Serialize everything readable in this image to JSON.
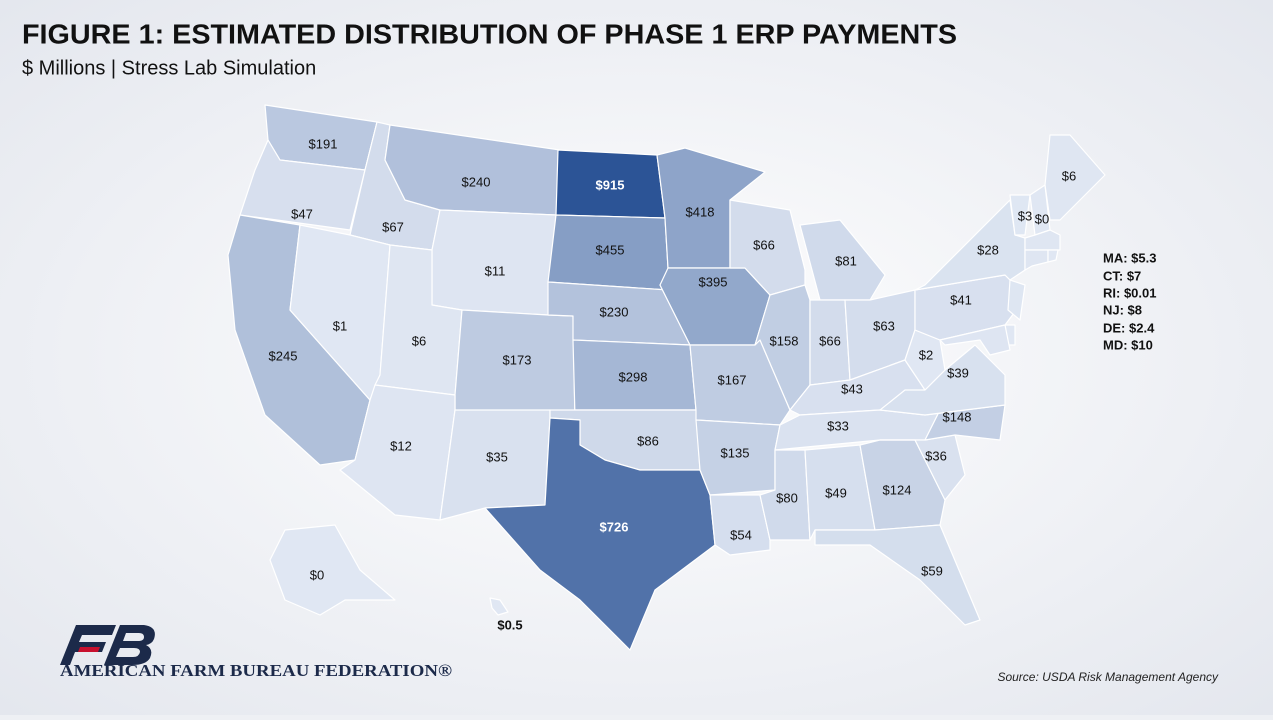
{
  "chart_data": {
    "type": "choropleth",
    "title": "FIGURE 1: ESTIMATED DISTRIBUTION OF PHASE 1 ERP PAYMENTS",
    "subtitle": "$ Millions | Stress Lab Simulation",
    "source": "Source: USDA Risk Management Agency",
    "organization": "AMERICAN FARM BUREAU FEDERATION®",
    "color_range": [
      "#e0e7f3",
      "#2c5496"
    ],
    "values": [
      191,
      47,
      245,
      67,
      1,
      240,
      11,
      6,
      173,
      12,
      35,
      915,
      455,
      230,
      298,
      86,
      726,
      418,
      395,
      167,
      135,
      54,
      66,
      158,
      81,
      66,
      63,
      43,
      33,
      80,
      49,
      124,
      59,
      36,
      148,
      39,
      2,
      41,
      28,
      3,
      0,
      6,
      5.3,
      7,
      0.01,
      8,
      2.4,
      10,
      0,
      0.5
    ],
    "value_labels": [
      "$191",
      "$47",
      "$245",
      "$67",
      "$1",
      "$240",
      "$11",
      "$6",
      "$173",
      "$12",
      "$35",
      "$915",
      "$455",
      "$230",
      "$298",
      "$86",
      "$726",
      "$418",
      "$395",
      "$167",
      "$135",
      "$54",
      "$66",
      "$158",
      "$81",
      "$66",
      "$63",
      "$43",
      "$33",
      "$80",
      "$49",
      "$124",
      "$59",
      "$36",
      "$148",
      "$39",
      "$2",
      "$41",
      "$28",
      "$3",
      "$0",
      "$6",
      "MA: $5.3",
      "CT: $7",
      "RI: $0.01",
      "NJ: $8",
      "DE: $2.4",
      "MD: $10",
      "$0",
      "$0.5"
    ]
  }
}
